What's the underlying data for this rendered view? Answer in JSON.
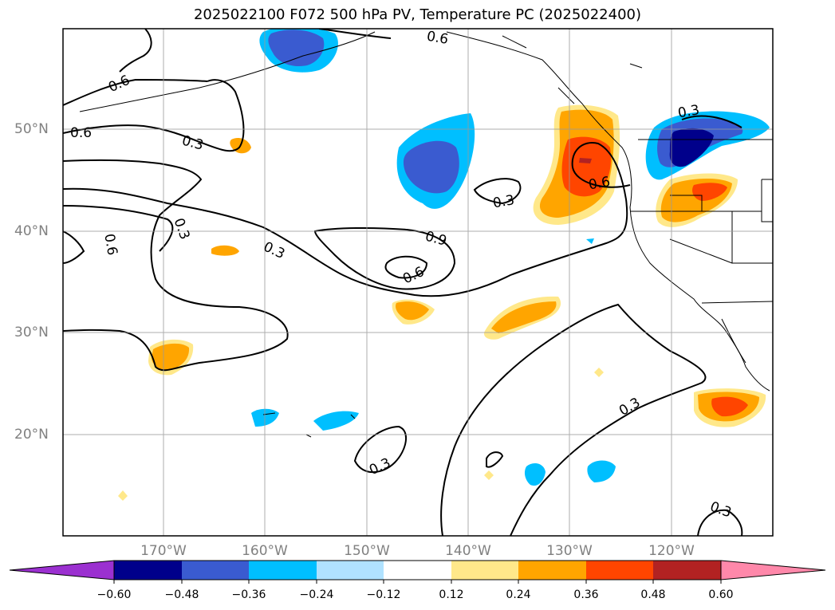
{
  "title": "2025022100 F072 500 hPa PV, Temperature PC (2025022400)",
  "map": {
    "extent": {
      "lon": [
        -180,
        -110
      ],
      "lat": [
        10,
        60
      ]
    },
    "lat_ticks": [
      "20°N",
      "30°N",
      "40°N",
      "50°N"
    ],
    "lon_ticks": [
      "170°W",
      "160°W",
      "150°W",
      "140°W",
      "130°W",
      "120°W"
    ],
    "gridlines": true,
    "contour_labels": [
      "0.6",
      "0.6",
      "0.6",
      "0.3",
      "0.3",
      "0.6",
      "0.3",
      "0.3",
      "0.6",
      "0.9",
      "0.3",
      "0.6",
      "0.3",
      "0.3",
      "0.3",
      "0.3"
    ]
  },
  "colorbar": {
    "ticks": [
      "−0.60",
      "−0.48",
      "−0.36",
      "−0.24",
      "−0.12",
      "0.12",
      "0.24",
      "0.36",
      "0.48",
      "0.60"
    ],
    "colors": {
      "under": "#9b30d0",
      "bins": [
        "#00008b",
        "#3a5bd0",
        "#00bfff",
        "#b0e2ff",
        "#ffffff",
        "#ffe88a",
        "#ffa500",
        "#ff4500",
        "#b22222"
      ],
      "over": "#ff88aa"
    }
  }
}
